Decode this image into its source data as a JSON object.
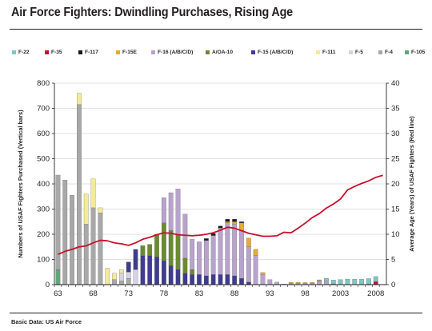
{
  "header": {
    "title": "Air Force Fighters: Dwindling Purchases, Rising Age"
  },
  "footer": {
    "source": "Basic Data: US Air Force"
  },
  "colors": {
    "text": "#231f20",
    "grid": "#d8d8d8",
    "age_line": "#c8102e"
  },
  "chart_data": {
    "type": "bar",
    "stacked": true,
    "grid": true,
    "legend_position": "top",
    "ylabel_left": "Numbers of USAF Fighters Purchased (Vertical bars)",
    "ylabel_right": "Average Age (Years) of USAF Fighters (Red line)",
    "ylim_left": [
      0,
      800
    ],
    "ylim_right": [
      0,
      40
    ],
    "x_start": 1963,
    "x_end": 2009,
    "y_ticks_left": [
      "0",
      "100",
      "200",
      "300",
      "400",
      "500",
      "600",
      "700",
      "800"
    ],
    "y_ticks_right": [
      "0",
      "5",
      "10",
      "15",
      "20",
      "25",
      "30",
      "35",
      "40"
    ],
    "x_ticks": [
      {
        "year": 1963,
        "label": "63"
      },
      {
        "year": 1968,
        "label": "68"
      },
      {
        "year": 1973,
        "label": "73"
      },
      {
        "year": 1978,
        "label": "78"
      },
      {
        "year": 1983,
        "label": "83"
      },
      {
        "year": 1988,
        "label": "88"
      },
      {
        "year": 1993,
        "label": "93"
      },
      {
        "year": 1998,
        "label": "98"
      },
      {
        "year": 2003,
        "label": "2003"
      },
      {
        "year": 2008,
        "label": "2008"
      }
    ],
    "series": [
      {
        "name": "F-22",
        "color": "#7fc6c4"
      },
      {
        "name": "F-35",
        "color": "#c8102e"
      },
      {
        "name": "F-117",
        "color": "#1a1a1a"
      },
      {
        "name": "F-15E",
        "color": "#e8a83a"
      },
      {
        "name": "F-16 (A/B/C/D)",
        "color": "#b7a3cc"
      },
      {
        "name": "A/OA-10",
        "color": "#6b8a2f"
      },
      {
        "name": "F-15 (A/B/C/D)",
        "color": "#3f3c8f"
      },
      {
        "name": "F-111",
        "color": "#f4ea9a"
      },
      {
        "name": "F-5",
        "color": "#d6d2e6"
      },
      {
        "name": "F-4",
        "color": "#a8a8a8"
      },
      {
        "name": "F-105",
        "color": "#5ea978"
      }
    ],
    "bars": [
      {
        "year": 1963,
        "values": {
          "F-105": 60,
          "F-4": 375
        }
      },
      {
        "year": 1964,
        "values": {
          "F-4": 415
        }
      },
      {
        "year": 1965,
        "values": {
          "F-4": 355
        }
      },
      {
        "year": 1966,
        "values": {
          "F-4": 715,
          "F-111": 45
        }
      },
      {
        "year": 1967,
        "values": {
          "F-4": 240,
          "F-111": 120
        }
      },
      {
        "year": 1968,
        "values": {
          "F-4": 305,
          "F-111": 115
        }
      },
      {
        "year": 1969,
        "values": {
          "F-4": 285,
          "F-111": 20
        }
      },
      {
        "year": 1970,
        "values": {
          "F-111": 65
        }
      },
      {
        "year": 1971,
        "values": {
          "F-4": 20,
          "F-111": 25
        }
      },
      {
        "year": 1972,
        "values": {
          "F-4": 15,
          "F-5": 30,
          "F-111": 15
        }
      },
      {
        "year": 1973,
        "values": {
          "F-15 (A/B/C/D)": 40,
          "F-5": 25,
          "F-4": 25
        }
      },
      {
        "year": 1974,
        "values": {
          "F-15 (A/B/C/D)": 80,
          "F-5": 60
        }
      },
      {
        "year": 1975,
        "values": {
          "F-15 (A/B/C/D)": 115,
          "A/OA-10": 40
        }
      },
      {
        "year": 1976,
        "values": {
          "F-15 (A/B/C/D)": 115,
          "A/OA-10": 45
        }
      },
      {
        "year": 1977,
        "values": {
          "F-15 (A/B/C/D)": 110,
          "A/OA-10": 90
        }
      },
      {
        "year": 1978,
        "values": {
          "F-15 (A/B/C/D)": 95,
          "A/OA-10": 150,
          "F-16 (A/B/C/D)": 100
        }
      },
      {
        "year": 1979,
        "values": {
          "F-15 (A/B/C/D)": 75,
          "A/OA-10": 140,
          "F-16 (A/B/C/D)": 150
        }
      },
      {
        "year": 1980,
        "values": {
          "F-15 (A/B/C/D)": 60,
          "A/OA-10": 140,
          "F-16 (A/B/C/D)": 180
        }
      },
      {
        "year": 1981,
        "values": {
          "F-15 (A/B/C/D)": 45,
          "A/OA-10": 60,
          "F-16 (A/B/C/D)": 175
        }
      },
      {
        "year": 1982,
        "values": {
          "F-15 (A/B/C/D)": 40,
          "A/OA-10": 20,
          "F-16 (A/B/C/D)": 120
        }
      },
      {
        "year": 1983,
        "values": {
          "F-15 (A/B/C/D)": 40,
          "F-16 (A/B/C/D)": 130
        }
      },
      {
        "year": 1984,
        "values": {
          "F-15 (A/B/C/D)": 35,
          "F-16 (A/B/C/D)": 140,
          "F-117": 8
        }
      },
      {
        "year": 1985,
        "values": {
          "F-15 (A/B/C/D)": 40,
          "F-16 (A/B/C/D)": 155,
          "F-117": 8
        }
      },
      {
        "year": 1986,
        "values": {
          "F-15 (A/B/C/D)": 40,
          "F-16 (A/B/C/D)": 185,
          "F-117": 8
        }
      },
      {
        "year": 1987,
        "values": {
          "F-15 (A/B/C/D)": 40,
          "F-16 (A/B/C/D)": 205,
          "F-15E": 5,
          "F-117": 10
        }
      },
      {
        "year": 1988,
        "values": {
          "F-15 (A/B/C/D)": 35,
          "F-16 (A/B/C/D)": 205,
          "F-15E": 10,
          "F-117": 10
        }
      },
      {
        "year": 1989,
        "values": {
          "F-15 (A/B/C/D)": 25,
          "F-16 (A/B/C/D)": 190,
          "F-15E": 30,
          "F-117": 5
        }
      },
      {
        "year": 1990,
        "values": {
          "F-15 (A/B/C/D)": 10,
          "F-16 (A/B/C/D)": 140,
          "F-15E": 35
        }
      },
      {
        "year": 1991,
        "values": {
          "F-16 (A/B/C/D)": 115,
          "F-15E": 25
        }
      },
      {
        "year": 1992,
        "values": {
          "F-16 (A/B/C/D)": 40,
          "F-15E": 8
        }
      },
      {
        "year": 1993,
        "values": {
          "F-16 (A/B/C/D)": 20
        }
      },
      {
        "year": 1994,
        "values": {
          "F-16 (A/B/C/D)": 10
        }
      },
      {
        "year": 1995,
        "values": {
          "F-16 (A/B/C/D)": 2
        }
      },
      {
        "year": 1996,
        "values": {
          "F-16 (A/B/C/D)": 6,
          "F-15E": 3
        }
      },
      {
        "year": 1997,
        "values": {
          "F-16 (A/B/C/D)": 6,
          "F-15E": 3
        }
      },
      {
        "year": 1998,
        "values": {
          "F-16 (A/B/C/D)": 5,
          "F-15E": 3
        }
      },
      {
        "year": 1999,
        "values": {
          "F-16 (A/B/C/D)": 5,
          "F-15E": 4
        }
      },
      {
        "year": 2000,
        "values": {
          "F-16 (A/B/C/D)": 12,
          "F-15E": 5,
          "F-22": 2
        }
      },
      {
        "year": 2001,
        "values": {
          "F-16 (A/B/C/D)": 15,
          "F-22": 10
        }
      },
      {
        "year": 2002,
        "values": {
          "F-16 (A/B/C/D)": 3,
          "F-22": 15
        }
      },
      {
        "year": 2003,
        "values": {
          "F-22": 20
        }
      },
      {
        "year": 2004,
        "values": {
          "F-22": 22
        }
      },
      {
        "year": 2005,
        "values": {
          "F-22": 22
        }
      },
      {
        "year": 2006,
        "values": {
          "F-22": 22
        }
      },
      {
        "year": 2007,
        "values": {
          "F-22": 22,
          "F-35": 2
        }
      },
      {
        "year": 2008,
        "values": {
          "F-22": 20,
          "F-35": 12
        }
      }
    ],
    "age_line": {
      "name": "Average Age",
      "points": [
        [
          1963,
          6.0
        ],
        [
          1964,
          6.6
        ],
        [
          1965,
          7.0
        ],
        [
          1966,
          7.5
        ],
        [
          1967,
          7.7
        ],
        [
          1968,
          8.3
        ],
        [
          1969,
          8.8
        ],
        [
          1970,
          8.7
        ],
        [
          1971,
          8.3
        ],
        [
          1972,
          8.1
        ],
        [
          1973,
          7.8
        ],
        [
          1974,
          8.3
        ],
        [
          1975,
          9.0
        ],
        [
          1976,
          9.4
        ],
        [
          1977,
          9.9
        ],
        [
          1978,
          10.3
        ],
        [
          1979,
          10.2
        ],
        [
          1980,
          9.9
        ],
        [
          1981,
          9.8
        ],
        [
          1982,
          9.7
        ],
        [
          1983,
          9.8
        ],
        [
          1984,
          10.0
        ],
        [
          1985,
          10.3
        ],
        [
          1986,
          10.8
        ],
        [
          1987,
          11.4
        ],
        [
          1988,
          11.2
        ],
        [
          1989,
          10.7
        ],
        [
          1990,
          10.2
        ],
        [
          1991,
          9.9
        ],
        [
          1992,
          9.6
        ],
        [
          1993,
          9.6
        ],
        [
          1994,
          9.7
        ],
        [
          1995,
          10.4
        ],
        [
          1996,
          10.3
        ],
        [
          1997,
          11.2
        ],
        [
          1998,
          12.2
        ],
        [
          1999,
          13.3
        ],
        [
          2000,
          14.1
        ],
        [
          2001,
          15.2
        ],
        [
          2002,
          16.0
        ],
        [
          2003,
          17.0
        ],
        [
          2004,
          18.8
        ],
        [
          2005,
          19.5
        ],
        [
          2006,
          20.1
        ],
        [
          2007,
          20.6
        ],
        [
          2008,
          21.3
        ],
        [
          2009,
          21.7
        ]
      ]
    }
  }
}
